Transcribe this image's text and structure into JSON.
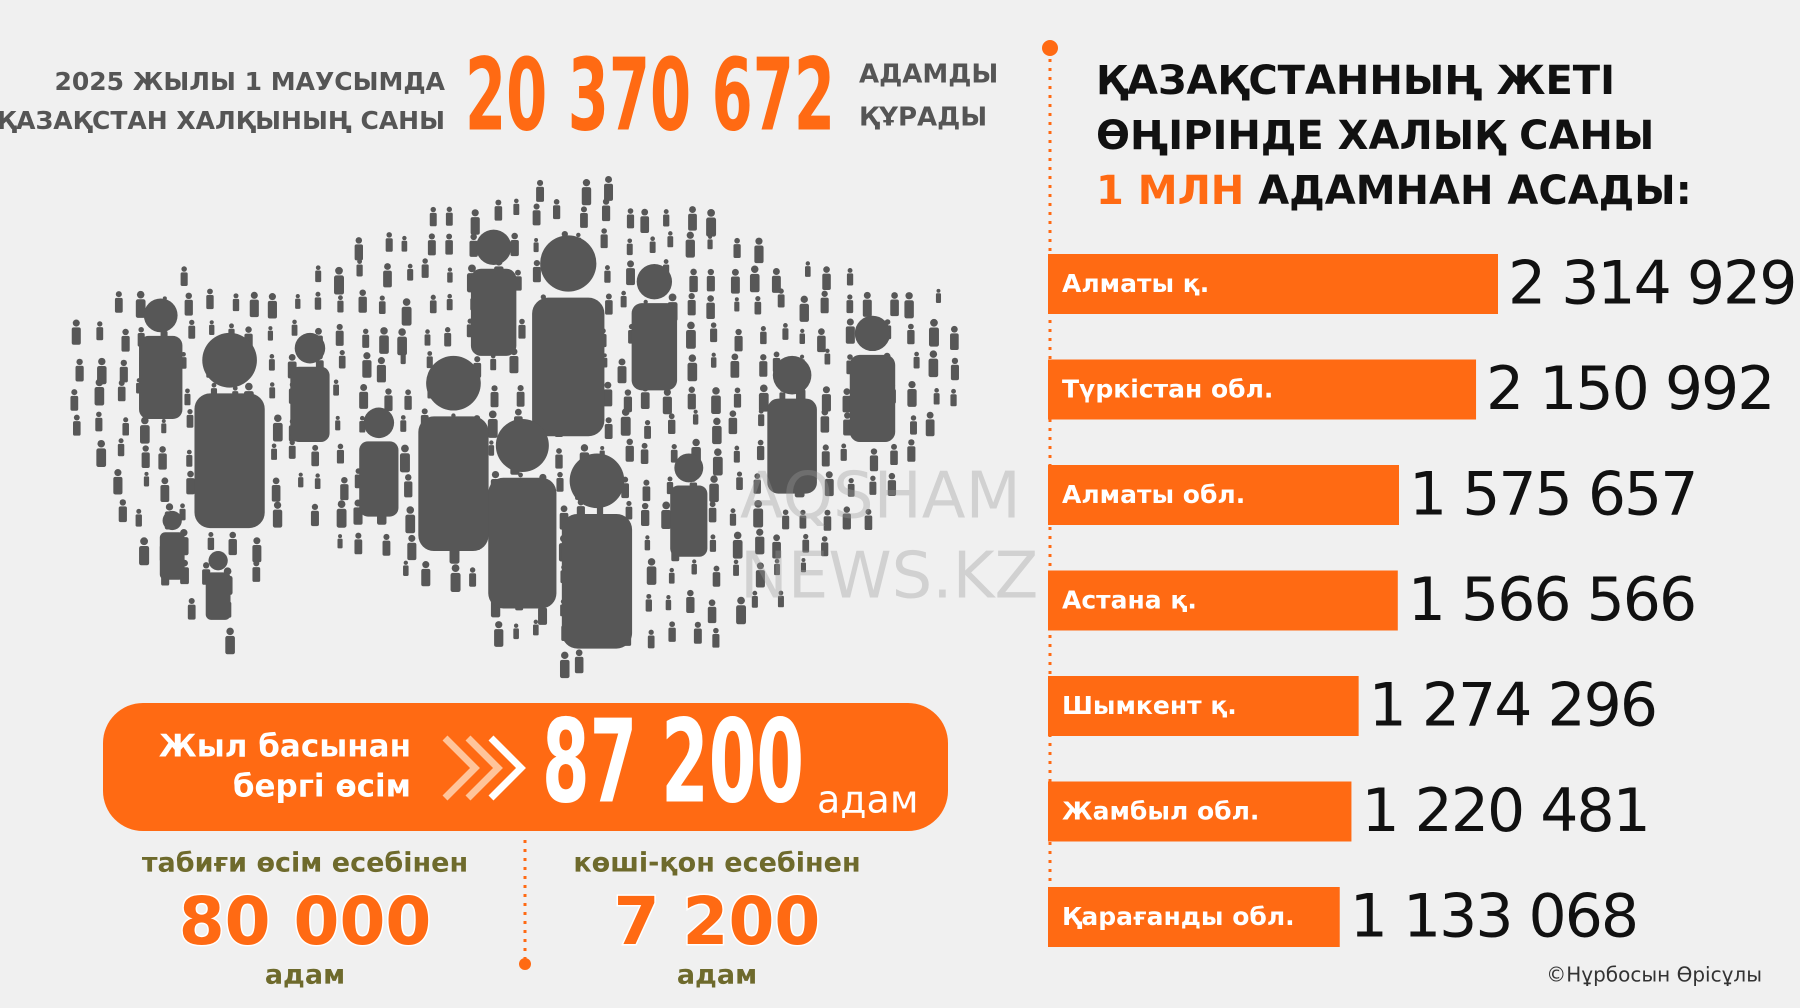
{
  "header": {
    "label_lines": [
      "2025 ЖЫЛЫ 1 МАУСЫМДА",
      "ҚАЗАҚСТАН ХАЛҚЫНЫҢ САНЫ"
    ],
    "population": "20 370 672",
    "suffix_lines": [
      "АДАМДЫ",
      "ҚҰРАДЫ"
    ]
  },
  "watermark": [
    "AQSHAM",
    "NEWS.KZ"
  ],
  "growth": {
    "label_lines": [
      "Жыл басынан",
      "бергі өсім"
    ],
    "value": "87 200",
    "unit": "адам",
    "parts": [
      {
        "label": "табиғи өсім есебінен",
        "value": "80 000",
        "unit": "адам"
      },
      {
        "label": "көші-қон есебінен",
        "value": "7 200",
        "unit": "адам"
      }
    ]
  },
  "chart_data": {
    "type": "bar",
    "orientation": "horizontal",
    "title_lines": [
      "ҚАЗАҚСТАННЫҢ ЖЕТІ",
      "ӨҢІРІНДЕ ХАЛЫҚ САНЫ"
    ],
    "title_highlight": "1 МЛН",
    "title_end": "АДАМНАН АСАДЫ:",
    "color": "#ff6a13",
    "categories": [
      "Алматы қ.",
      "Түркістан обл.",
      "Алматы обл.",
      "Астана қ.",
      "Шымкент қ.",
      "Жамбыл обл.",
      "Қарағанды обл."
    ],
    "values": [
      2314929,
      2150992,
      1575657,
      1566566,
      1274296,
      1220481,
      1133068
    ],
    "value_labels": [
      "2 314 929",
      "2 150 992",
      "1 575 657",
      "1 566 566",
      "1 274 296",
      "1 220 481",
      "1 133 068"
    ]
  },
  "credit": "©Нұрбосын Өрісұлы"
}
